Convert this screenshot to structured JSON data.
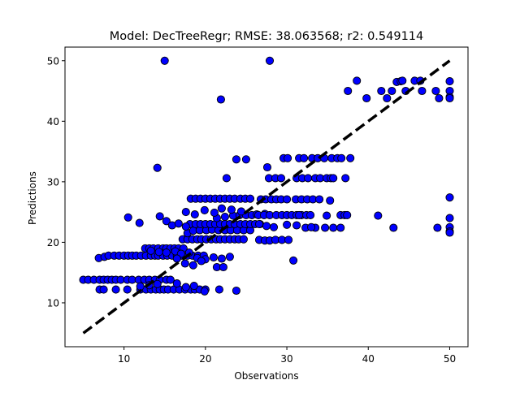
{
  "chart_data": {
    "type": "scatter",
    "title": "Model: DecTreeRegr; RMSE: 38.063568; r2: 0.549114",
    "xlabel": "Observations",
    "ylabel": "Predictions",
    "xlim": [
      2.75,
      52.25
    ],
    "ylim": [
      2.75,
      52.25
    ],
    "xticks": [
      10,
      20,
      30,
      40,
      50
    ],
    "yticks": [
      10,
      20,
      30,
      40,
      50
    ],
    "grid": false,
    "marker_color": "#0000ff",
    "marker_edge_color": "#000000",
    "reference_line": {
      "style": "dashed",
      "color": "#000000",
      "from": [
        5,
        5
      ],
      "to": [
        50,
        50
      ]
    },
    "points": [
      [
        15,
        50
      ],
      [
        27.9,
        50
      ],
      [
        21.9,
        43.6
      ],
      [
        14.1,
        32.3
      ],
      [
        10.5,
        24.1
      ],
      [
        11.9,
        23.2
      ],
      [
        5,
        13.8
      ],
      [
        5.6,
        13.8
      ],
      [
        6.3,
        13.8
      ],
      [
        7,
        13.8
      ],
      [
        7.5,
        13.8
      ],
      [
        8,
        13.8
      ],
      [
        8.5,
        13.8
      ],
      [
        9,
        13.8
      ],
      [
        9.6,
        13.8
      ],
      [
        10.4,
        13.8
      ],
      [
        11,
        13.8
      ],
      [
        11.8,
        13.8
      ],
      [
        12.5,
        13.8
      ],
      [
        13.1,
        13.8
      ],
      [
        13.8,
        13.8
      ],
      [
        14.4,
        13.8
      ],
      [
        15.2,
        13.8
      ],
      [
        15.7,
        13.8
      ],
      [
        7,
        12.2
      ],
      [
        7.5,
        12.2
      ],
      [
        9,
        12.2
      ],
      [
        10.4,
        12.2
      ],
      [
        12,
        12.2
      ],
      [
        12.7,
        12.2
      ],
      [
        13.3,
        12.2
      ],
      [
        13.9,
        12.2
      ],
      [
        14.4,
        12.2
      ],
      [
        14.9,
        12.2
      ],
      [
        15.4,
        12.2
      ],
      [
        16.1,
        12.2
      ],
      [
        16.8,
        12.2
      ],
      [
        17.5,
        12.2
      ],
      [
        18.2,
        12.2
      ],
      [
        18.7,
        12.2
      ],
      [
        19.3,
        12.2
      ],
      [
        20,
        12.2
      ],
      [
        21.7,
        12.2
      ],
      [
        23.8,
        12
      ],
      [
        12,
        12.7
      ],
      [
        13.1,
        12.9
      ],
      [
        14.1,
        13.1
      ],
      [
        16.5,
        13.2
      ],
      [
        17.6,
        12.6
      ],
      [
        18.6,
        12.8
      ],
      [
        19.9,
        11.9
      ],
      [
        6.9,
        17.4
      ],
      [
        7.6,
        17.6
      ],
      [
        8.1,
        17.8
      ],
      [
        8.8,
        17.8
      ],
      [
        9.4,
        17.8
      ],
      [
        10,
        17.8
      ],
      [
        10.5,
        17.8
      ],
      [
        11,
        17.8
      ],
      [
        11.5,
        17.8
      ],
      [
        12.1,
        17.8
      ],
      [
        12.7,
        17.8
      ],
      [
        13.3,
        17.8
      ],
      [
        13.8,
        17.8
      ],
      [
        14.2,
        17.8
      ],
      [
        14.8,
        17.8
      ],
      [
        15.3,
        17.8
      ],
      [
        15.9,
        17.8
      ],
      [
        16.5,
        17.8
      ],
      [
        17.1,
        17.8
      ],
      [
        17.8,
        17.8
      ],
      [
        18.4,
        17.8
      ],
      [
        19.1,
        17.8
      ],
      [
        19.8,
        17.8
      ],
      [
        12.6,
        19
      ],
      [
        13.1,
        19
      ],
      [
        13.6,
        19
      ],
      [
        14.2,
        19
      ],
      [
        14.8,
        19
      ],
      [
        15.2,
        19
      ],
      [
        15.7,
        19
      ],
      [
        16.2,
        19
      ],
      [
        16.7,
        19
      ],
      [
        17.3,
        19
      ],
      [
        13.3,
        18.6
      ],
      [
        14.3,
        18.4
      ],
      [
        15.2,
        18.3
      ],
      [
        16.3,
        18.5
      ],
      [
        17,
        18.1
      ],
      [
        18,
        18.3
      ],
      [
        19,
        17.4
      ],
      [
        20,
        17.2
      ],
      [
        21,
        17.5
      ],
      [
        22,
        17.3
      ],
      [
        23,
        17.6
      ],
      [
        16.5,
        17.3
      ],
      [
        17.5,
        16.5
      ],
      [
        18.5,
        16.2
      ],
      [
        19.5,
        16.9
      ],
      [
        21.4,
        15.9
      ],
      [
        22.2,
        15.9
      ],
      [
        17.2,
        20.5
      ],
      [
        17.8,
        20.5
      ],
      [
        18.4,
        20.5
      ],
      [
        19,
        20.5
      ],
      [
        19.5,
        20.5
      ],
      [
        20.1,
        20.5
      ],
      [
        20.7,
        20.5
      ],
      [
        21.3,
        20.5
      ],
      [
        21.8,
        20.5
      ],
      [
        22.4,
        20.5
      ],
      [
        23,
        20.5
      ],
      [
        23.6,
        20.5
      ],
      [
        24.1,
        20.5
      ],
      [
        24.7,
        20.5
      ],
      [
        17.8,
        21.5
      ],
      [
        18.5,
        21.9
      ],
      [
        19.3,
        22
      ],
      [
        20.1,
        22
      ],
      [
        20.8,
        22.1
      ],
      [
        21.6,
        22
      ],
      [
        22.4,
        22
      ],
      [
        23.1,
        22
      ],
      [
        23.9,
        22
      ],
      [
        24.7,
        22
      ],
      [
        25.5,
        22
      ],
      [
        18.1,
        23
      ],
      [
        18.8,
        23
      ],
      [
        19.4,
        23
      ],
      [
        20,
        23
      ],
      [
        20.6,
        23
      ],
      [
        21.2,
        23
      ],
      [
        21.8,
        23
      ],
      [
        22.4,
        23
      ],
      [
        23,
        23
      ],
      [
        23.6,
        23
      ],
      [
        24.3,
        23
      ],
      [
        24.9,
        23
      ],
      [
        25.5,
        23
      ],
      [
        26.1,
        23
      ],
      [
        26.7,
        23
      ],
      [
        21.4,
        24
      ],
      [
        22.4,
        24.2
      ],
      [
        23.4,
        24.4
      ],
      [
        24.2,
        24.5
      ],
      [
        25,
        24.5
      ],
      [
        25.7,
        24.5
      ],
      [
        26.3,
        24.6
      ],
      [
        18.2,
        27.2
      ],
      [
        18.8,
        27.2
      ],
      [
        19.4,
        27.2
      ],
      [
        20,
        27.2
      ],
      [
        20.6,
        27.2
      ],
      [
        21.2,
        27.2
      ],
      [
        21.8,
        27.2
      ],
      [
        22.4,
        27.2
      ],
      [
        23,
        27.2
      ],
      [
        23.6,
        27.2
      ],
      [
        24.3,
        27.2
      ],
      [
        24.9,
        27.2
      ],
      [
        25.5,
        27.2
      ],
      [
        17.6,
        25
      ],
      [
        18.7,
        24.6
      ],
      [
        19.9,
        25.3
      ],
      [
        21.1,
        24.9
      ],
      [
        22,
        25.6
      ],
      [
        23.2,
        25.4
      ],
      [
        24.4,
        25.1
      ],
      [
        14.4,
        24.3
      ],
      [
        15.2,
        23.5
      ],
      [
        15.9,
        22.8
      ],
      [
        16.7,
        23.1
      ],
      [
        17.6,
        22.6
      ],
      [
        22.6,
        30.6
      ],
      [
        23.8,
        33.7
      ],
      [
        25,
        33.7
      ],
      [
        27.6,
        32.4
      ],
      [
        27.3,
        24.7
      ],
      [
        26.8,
        27.1
      ],
      [
        27.4,
        27.1
      ],
      [
        28.1,
        27.1
      ],
      [
        28.7,
        27.1
      ],
      [
        29.3,
        27.1
      ],
      [
        30,
        27.1
      ],
      [
        31.1,
        27.1
      ],
      [
        31.8,
        27.1
      ],
      [
        32.5,
        27.1
      ],
      [
        33.2,
        27.1
      ],
      [
        34,
        27.1
      ],
      [
        35.3,
        26.9
      ],
      [
        27.8,
        30.6
      ],
      [
        28.6,
        30.6
      ],
      [
        29.3,
        30.6
      ],
      [
        31.2,
        30.6
      ],
      [
        31.9,
        30.6
      ],
      [
        32.6,
        30.6
      ],
      [
        33.5,
        30.6
      ],
      [
        34.1,
        30.6
      ],
      [
        34.9,
        30.6
      ],
      [
        35.4,
        30.6
      ],
      [
        35.7,
        30.6
      ],
      [
        37.2,
        30.6
      ],
      [
        29.6,
        33.9
      ],
      [
        30.1,
        33.9
      ],
      [
        31.5,
        33.9
      ],
      [
        32.1,
        33.9
      ],
      [
        33.1,
        33.9
      ],
      [
        33.8,
        33.9
      ],
      [
        34.6,
        33.9
      ],
      [
        35.5,
        33.9
      ],
      [
        36.2,
        33.9
      ],
      [
        36.7,
        33.9
      ],
      [
        37.8,
        33.9
      ],
      [
        26.5,
        24.5
      ],
      [
        27.2,
        24.5
      ],
      [
        27.9,
        24.5
      ],
      [
        28.7,
        24.5
      ],
      [
        29.4,
        24.5
      ],
      [
        30,
        24.5
      ],
      [
        30.6,
        24.5
      ],
      [
        31.2,
        24.5
      ],
      [
        31.8,
        24.5
      ],
      [
        32.4,
        24.5
      ],
      [
        32.9,
        24.5
      ],
      [
        26.6,
        23
      ],
      [
        27.5,
        22.7
      ],
      [
        28.4,
        22.5
      ],
      [
        30,
        22.9
      ],
      [
        31.2,
        22.8
      ],
      [
        32.3,
        22.4
      ],
      [
        33.5,
        22.4
      ],
      [
        26.6,
        20.4
      ],
      [
        27.3,
        20.3
      ],
      [
        27.9,
        20.3
      ],
      [
        28.6,
        20.4
      ],
      [
        29.4,
        20.4
      ],
      [
        30.2,
        20.4
      ],
      [
        30.8,
        17
      ],
      [
        33,
        22.5
      ],
      [
        34.9,
        24.4
      ],
      [
        35.7,
        22.4
      ],
      [
        36.6,
        24.5
      ],
      [
        37.1,
        24.5
      ],
      [
        37.4,
        24.5
      ],
      [
        41.2,
        24.4
      ],
      [
        43.1,
        22.4
      ],
      [
        34.7,
        22.4
      ],
      [
        36.6,
        22.4
      ],
      [
        31.5,
        24.5
      ],
      [
        37.5,
        45
      ],
      [
        38.6,
        46.7
      ],
      [
        39.8,
        43.8
      ],
      [
        41.6,
        45
      ],
      [
        42.3,
        43.8
      ],
      [
        42.9,
        45
      ],
      [
        43.5,
        46.5
      ],
      [
        44,
        46.6
      ],
      [
        44.2,
        46.7
      ],
      [
        44.6,
        45
      ],
      [
        45.7,
        46.7
      ],
      [
        46.4,
        46.7
      ],
      [
        46.6,
        45
      ],
      [
        48.3,
        45
      ],
      [
        48.7,
        43.8
      ],
      [
        48.5,
        22.4
      ],
      [
        50,
        46.6
      ],
      [
        50,
        45
      ],
      [
        50,
        44
      ],
      [
        50,
        43.8
      ],
      [
        50,
        27.4
      ],
      [
        50,
        24
      ],
      [
        50,
        22.5
      ],
      [
        50,
        21.8
      ],
      [
        50,
        21.6
      ]
    ]
  }
}
